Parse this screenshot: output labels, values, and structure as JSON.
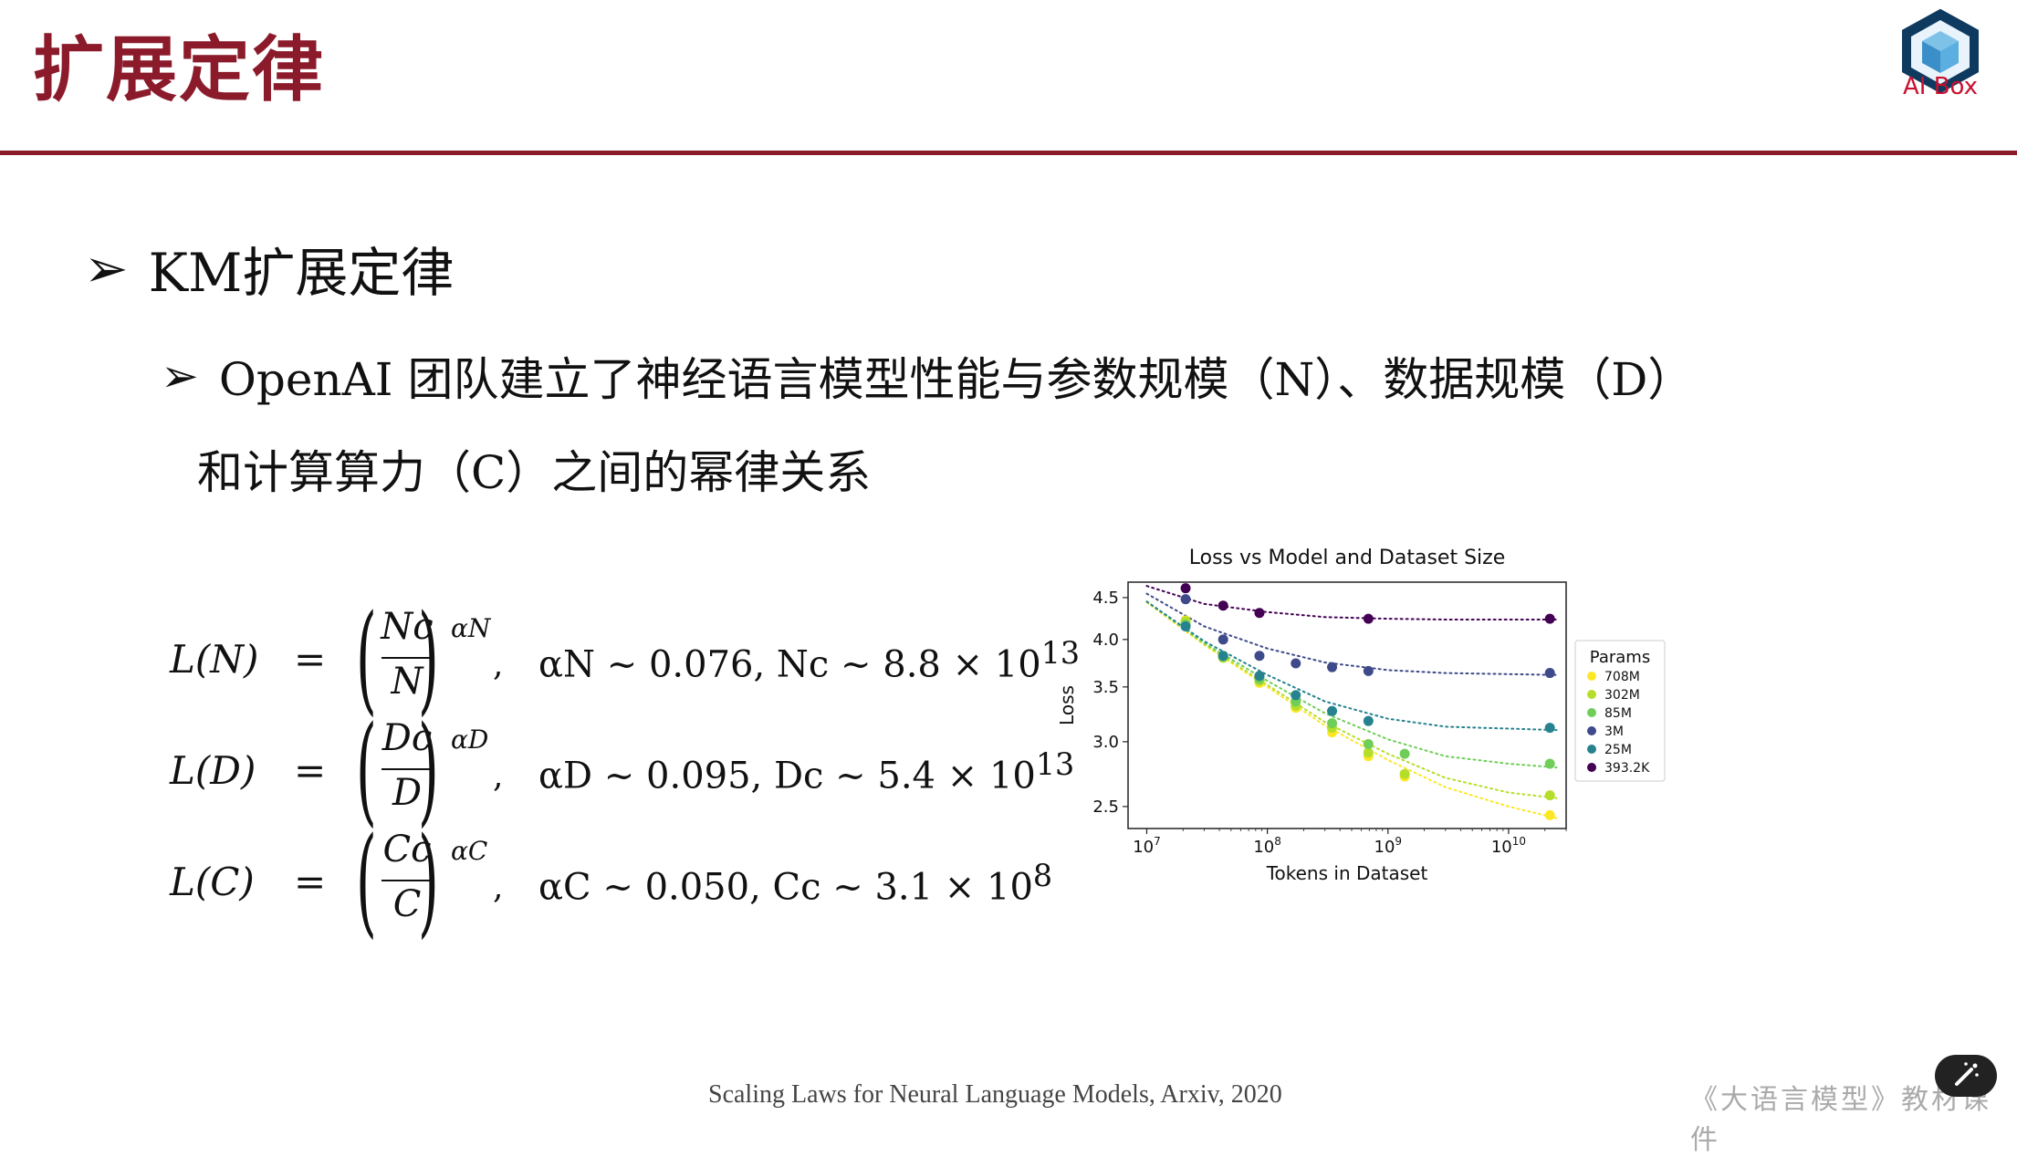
{
  "header": {
    "title": "扩展定律",
    "logo_text": "AI Box"
  },
  "bullets": {
    "level1": {
      "marker": "➢",
      "text": "KM扩展定律"
    },
    "level2": {
      "marker": "➢",
      "line1": "OpenAI 团队建立了神经语言模型性能与参数规模（N）、数据规模（D）",
      "line2": "和计算算力（C）之间的幂律关系"
    }
  },
  "formulas": [
    {
      "lhs": "L(N)",
      "eq": "=",
      "num": "Nc",
      "den": "N",
      "exp": "αN",
      "comma": ",",
      "rhs": "αN ~ 0.076, Nc ~ 8.8 × 10",
      "rhs_sup": "13"
    },
    {
      "lhs": "L(D)",
      "eq": "=",
      "num": "Dc",
      "den": "D",
      "exp": "αD",
      "comma": ",",
      "rhs": "αD ~ 0.095, Dc ~ 5.4 × 10",
      "rhs_sup": "13"
    },
    {
      "lhs": "L(C)",
      "eq": "=",
      "num": "Cc",
      "den": "C",
      "exp": "αC",
      "comma": ",",
      "rhs": "αC ~ 0.050, Cc ~ 3.1 × 10",
      "rhs_sup": "8"
    }
  ],
  "chart_data": {
    "type": "scatter",
    "title": "Loss vs Model and Dataset Size",
    "xlabel": "Tokens in Dataset",
    "ylabel": "Loss",
    "x_scale": "log",
    "y_scale": "log",
    "xlim": [
      7000000,
      30000000000
    ],
    "ylim": [
      2.35,
      4.7
    ],
    "x_ticks": [
      {
        "value": 10000000,
        "label": "10",
        "sup": "7"
      },
      {
        "value": 100000000,
        "label": "10",
        "sup": "8"
      },
      {
        "value": 1000000000,
        "label": "10",
        "sup": "9"
      },
      {
        "value": 10000000000,
        "label": "10",
        "sup": "10"
      }
    ],
    "y_ticks": [
      {
        "value": 2.5,
        "label": "2.5"
      },
      {
        "value": 3.0,
        "label": "3.0"
      },
      {
        "value": 3.5,
        "label": "3.5"
      },
      {
        "value": 4.0,
        "label": "4.0"
      },
      {
        "value": 4.5,
        "label": "4.5"
      }
    ],
    "legend_title": "Params",
    "legend_position": "right",
    "x": [
      21000000,
      43000000,
      86000000,
      172000000,
      344000000,
      688000000,
      1376000000,
      22000000000
    ],
    "series": [
      {
        "name": "708M",
        "color": "#fde725",
        "values": [
          4.22,
          3.8,
          3.54,
          3.3,
          3.08,
          2.88,
          2.72,
          2.44
        ],
        "fit": [
          4.44,
          3.94,
          3.5,
          3.14,
          2.85,
          2.64,
          2.5,
          2.42
        ]
      },
      {
        "name": "302M",
        "color": "#b5de2b",
        "values": [
          4.21,
          3.8,
          3.56,
          3.32,
          3.12,
          2.91,
          2.74,
          2.58
        ],
        "fit": [
          4.45,
          3.95,
          3.52,
          3.17,
          2.9,
          2.71,
          2.6,
          2.56
        ]
      },
      {
        "name": "85M",
        "color": "#6ece58",
        "values": [
          4.17,
          3.81,
          3.58,
          3.36,
          3.16,
          2.98,
          2.9,
          2.82
        ],
        "fit": [
          4.45,
          3.96,
          3.56,
          3.25,
          3.02,
          2.88,
          2.82,
          2.79
        ]
      },
      {
        "name": "3M",
        "color": "#3e4a89",
        "values": [
          4.48,
          4.0,
          3.82,
          3.74,
          3.7,
          3.66,
          3.64
        ],
        "fit": [
          4.55,
          4.15,
          3.9,
          3.75,
          3.67,
          3.64,
          3.62
        ]
      },
      {
        "name": "25M",
        "color": "#26828e",
        "values": [
          4.15,
          3.82,
          3.61,
          3.42,
          3.27,
          3.18,
          3.12
        ],
        "fit": [
          4.45,
          3.98,
          3.62,
          3.36,
          3.2,
          3.13,
          3.1
        ]
      },
      {
        "name": "393.2K",
        "color": "#440154",
        "values": [
          4.62,
          4.4,
          4.31,
          4.24,
          4.24
        ],
        "fit": [
          4.65,
          4.42,
          4.32,
          4.26,
          4.24,
          4.23,
          4.23
        ]
      }
    ],
    "series_x": [
      [
        21000000,
        43000000,
        86000000,
        172000000,
        344000000,
        688000000,
        1376000000,
        22000000000
      ],
      [
        21000000,
        43000000,
        86000000,
        172000000,
        344000000,
        688000000,
        1376000000,
        22000000000
      ],
      [
        21000000,
        43000000,
        86000000,
        172000000,
        344000000,
        688000000,
        1376000000,
        22000000000
      ],
      [
        21000000,
        43000000,
        86000000,
        172000000,
        344000000,
        688000000,
        22000000000
      ],
      [
        21000000,
        43000000,
        86000000,
        172000000,
        344000000,
        688000000,
        22000000000
      ],
      [
        21000000,
        43000000,
        86000000,
        688000000,
        22000000000
      ]
    ],
    "fit_x": [
      [
        10000000,
        30000000,
        100000000,
        300000000,
        1000000000,
        3000000000,
        10000000000,
        25000000000
      ],
      [
        10000000,
        30000000,
        100000000,
        300000000,
        1000000000,
        3000000000,
        10000000000,
        25000000000
      ],
      [
        10000000,
        30000000,
        100000000,
        300000000,
        1000000000,
        3000000000,
        10000000000,
        25000000000
      ],
      [
        10000000,
        30000000,
        100000000,
        300000000,
        1000000000,
        3000000000,
        25000000000
      ],
      [
        10000000,
        30000000,
        100000000,
        300000000,
        1000000000,
        3000000000,
        25000000000
      ],
      [
        10000000,
        30000000,
        100000000,
        300000000,
        1000000000,
        3000000000,
        25000000000
      ]
    ]
  },
  "footer": {
    "citation": "Scaling Laws for Neural Language Models, Arxiv, 2020",
    "right": "《大语言模型》教材课件"
  }
}
